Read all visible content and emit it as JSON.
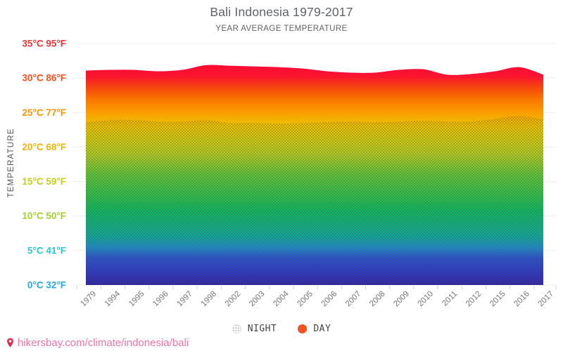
{
  "title": "Bali Indonesia 1979-2017",
  "subtitle": "YEAR AVERAGE TEMPERATURE",
  "y_axis": {
    "title": "TEMPERATURE",
    "ticks": [
      {
        "c": 35,
        "label": "35°C 95°F",
        "color": "#e53434"
      },
      {
        "c": 30,
        "label": "30°C 86°F",
        "color": "#f4511e"
      },
      {
        "c": 25,
        "label": "25°C 77°F",
        "color": "#f9940b"
      },
      {
        "c": 20,
        "label": "20°C 68°F",
        "color": "#eeb511"
      },
      {
        "c": 15,
        "label": "15°C 59°F",
        "color": "#c3cf1d"
      },
      {
        "c": 10,
        "label": "10°C 50°F",
        "color": "#a4ce33"
      },
      {
        "c": 5,
        "label": "5°C 41°F",
        "color": "#2fc5c9"
      },
      {
        "c": 0,
        "label": "0°C 32°F",
        "color": "#2ba7e0"
      }
    ]
  },
  "chart_data": {
    "type": "area",
    "title": "Bali Indonesia 1979-2017",
    "subtitle": "YEAR AVERAGE TEMPERATURE",
    "xlabel": "",
    "ylabel": "TEMPERATURE",
    "ylim": [
      0,
      35
    ],
    "grid": true,
    "legend_position": "bottom",
    "x": [
      1979,
      1994,
      1995,
      1996,
      1997,
      1998,
      2002,
      2003,
      2004,
      2005,
      2006,
      2007,
      2008,
      2009,
      2010,
      2011,
      2012,
      2015,
      2016,
      2017
    ],
    "series": [
      {
        "name": "DAY",
        "unit": "°C",
        "values": [
          31.0,
          31.1,
          31.1,
          30.9,
          31.1,
          31.8,
          31.7,
          31.6,
          31.5,
          31.3,
          30.9,
          30.7,
          30.7,
          31.1,
          31.2,
          30.4,
          30.5,
          30.9,
          31.5,
          30.4
        ]
      },
      {
        "name": "NIGHT",
        "unit": "°C",
        "values": [
          23.6,
          23.9,
          23.9,
          23.7,
          23.7,
          23.9,
          23.5,
          23.5,
          23.4,
          23.5,
          23.6,
          23.7,
          23.6,
          23.7,
          23.8,
          23.7,
          23.7,
          24.1,
          24.5,
          24.0
        ]
      }
    ]
  },
  "gradient_stops": [
    {
      "t": 0,
      "color": "#2f23ac"
    },
    {
      "t": 2,
      "color": "#2c39cc"
    },
    {
      "t": 4,
      "color": "#2856d6"
    },
    {
      "t": 5.5,
      "color": "#1b8fcd"
    },
    {
      "t": 7,
      "color": "#0ea9a2"
    },
    {
      "t": 8.5,
      "color": "#0cb189"
    },
    {
      "t": 11,
      "color": "#0eba62"
    },
    {
      "t": 13,
      "color": "#2ec04e"
    },
    {
      "t": 16,
      "color": "#5ec63c"
    },
    {
      "t": 19,
      "color": "#b2cc24"
    },
    {
      "t": 21,
      "color": "#cfcb13"
    },
    {
      "t": 23,
      "color": "#ecc304"
    },
    {
      "t": 25,
      "color": "#fa9e00"
    },
    {
      "t": 27,
      "color": "#f97400"
    },
    {
      "t": 28.8,
      "color": "#f6400f"
    },
    {
      "t": 30.2,
      "color": "#fa1631"
    },
    {
      "t": 31.74,
      "color": "#fb0c33"
    }
  ],
  "legend": {
    "items": [
      {
        "label": "NIGHT",
        "swatch": "dot-pattern"
      },
      {
        "label": "DAY",
        "swatch": "#f4511e"
      }
    ]
  },
  "footer": {
    "link": "hikersbay.com/climate/indonesia/bali",
    "pin_color": "#e0254f",
    "link_color": "#ee74a8"
  },
  "colors": {
    "title_text": "#5f6368",
    "axis_text": "#757575",
    "gridline": "#ececec",
    "day_top_stroke": "#f50f36"
  }
}
